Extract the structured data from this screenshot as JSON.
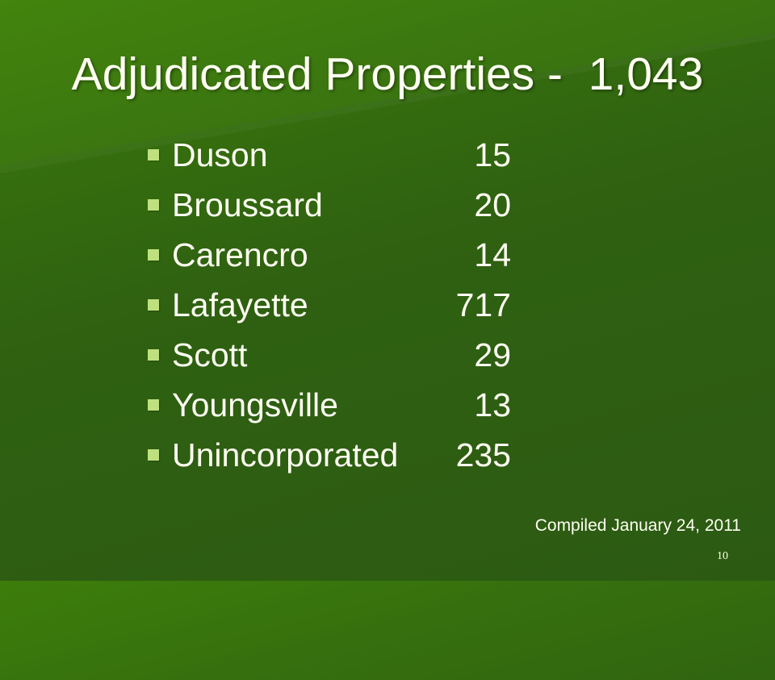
{
  "slide": {
    "title": "Adjudicated Properties -  1,043",
    "items": [
      {
        "label": "Duson",
        "count": "15"
      },
      {
        "label": "Broussard",
        "count": "20"
      },
      {
        "label": "Carencro",
        "count": "14"
      },
      {
        "label": "Lafayette",
        "count": "717"
      },
      {
        "label": "Scott",
        "count": "29"
      },
      {
        "label": "Youngsville",
        "count": "13"
      },
      {
        "label": "Unincorporated",
        "count": "235"
      }
    ],
    "footnote": "Compiled January 24, 2011",
    "page_number": "10"
  },
  "colors": {
    "background": "#2f6111",
    "background_highlight": "#3d7d0b",
    "text": "#fffff2",
    "bullet": "#bfe07e"
  },
  "icons": {
    "bullet": "square-bullet-icon"
  }
}
